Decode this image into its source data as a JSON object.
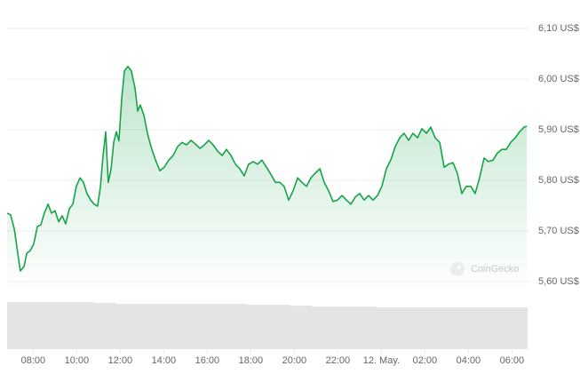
{
  "chart_data": {
    "type": "line",
    "watermark": "CoinGecko",
    "series": [
      {
        "color": "#16a34a",
        "x": [
          6.8,
          6.96,
          7.13,
          7.29,
          7.41,
          7.58,
          7.7,
          7.86,
          8.02,
          8.19,
          8.35,
          8.51,
          8.68,
          8.84,
          9.0,
          9.17,
          9.33,
          9.49,
          9.66,
          9.82,
          9.98,
          10.15,
          10.31,
          10.47,
          10.64,
          10.8,
          10.96,
          11.09,
          11.21,
          11.33,
          11.45,
          11.58,
          11.7,
          11.82,
          11.94,
          12.07,
          12.19,
          12.35,
          12.51,
          12.68,
          12.8,
          12.92,
          13.09,
          13.25,
          13.41,
          13.62,
          13.82,
          14.02,
          14.23,
          14.43,
          14.64,
          14.84,
          15.04,
          15.25,
          15.45,
          15.66,
          15.86,
          16.07,
          16.27,
          16.47,
          16.68,
          16.88,
          17.09,
          17.29,
          17.49,
          17.7,
          17.9,
          18.11,
          18.31,
          18.51,
          18.72,
          18.92,
          19.13,
          19.33,
          19.53,
          19.74,
          19.94,
          20.15,
          20.35,
          20.56,
          20.76,
          20.96,
          21.17,
          21.37,
          21.58,
          21.78,
          21.98,
          22.19,
          22.39,
          22.6,
          22.8,
          23.0,
          23.21,
          23.41,
          23.62,
          23.82,
          24.02,
          24.23,
          24.43,
          24.64,
          24.84,
          25.04,
          25.25,
          25.45,
          25.66,
          25.86,
          26.07,
          26.27,
          26.47,
          26.68,
          26.88,
          27.09,
          27.29,
          27.49,
          27.7,
          27.9,
          28.11,
          28.31,
          28.51,
          28.72,
          28.92,
          29.13,
          29.33,
          29.53,
          29.74,
          29.94,
          30.15,
          30.35,
          30.56,
          30.68
        ],
        "values": [
          5.735,
          5.732,
          5.704,
          5.656,
          5.621,
          5.63,
          5.656,
          5.661,
          5.674,
          5.709,
          5.712,
          5.735,
          5.753,
          5.735,
          5.74,
          5.718,
          5.73,
          5.714,
          5.744,
          5.753,
          5.788,
          5.805,
          5.796,
          5.774,
          5.761,
          5.753,
          5.749,
          5.788,
          5.849,
          5.896,
          5.796,
          5.823,
          5.875,
          5.896,
          5.878,
          5.963,
          6.016,
          6.025,
          6.016,
          5.981,
          5.937,
          5.949,
          5.928,
          5.893,
          5.867,
          5.84,
          5.819,
          5.826,
          5.84,
          5.849,
          5.867,
          5.875,
          5.87,
          5.879,
          5.872,
          5.863,
          5.87,
          5.879,
          5.87,
          5.858,
          5.849,
          5.861,
          5.849,
          5.832,
          5.823,
          5.809,
          5.832,
          5.837,
          5.832,
          5.84,
          5.826,
          5.812,
          5.796,
          5.796,
          5.788,
          5.761,
          5.779,
          5.805,
          5.796,
          5.788,
          5.805,
          5.814,
          5.823,
          5.796,
          5.779,
          5.758,
          5.761,
          5.77,
          5.761,
          5.753,
          5.767,
          5.774,
          5.761,
          5.77,
          5.761,
          5.77,
          5.788,
          5.823,
          5.84,
          5.867,
          5.884,
          5.893,
          5.879,
          5.893,
          5.884,
          5.902,
          5.893,
          5.905,
          5.884,
          5.875,
          5.826,
          5.832,
          5.835,
          5.814,
          5.774,
          5.788,
          5.788,
          5.774,
          5.805,
          5.844,
          5.837,
          5.84,
          5.854,
          5.861,
          5.861,
          5.875,
          5.884,
          5.896,
          5.905,
          5.907
        ]
      }
    ],
    "volume": {
      "color": "#e4e4e4",
      "x": [
        6.8,
        7.8,
        8.8,
        9.8,
        10.8,
        11.8,
        12.8,
        13.8,
        14.8,
        15.8,
        16.8,
        17.8,
        18.8,
        19.8,
        20.8,
        21.8,
        22.8,
        23.8,
        24.8,
        25.8,
        26.8,
        27.8,
        28.8,
        29.8
      ],
      "values": [
        52,
        52,
        52,
        52,
        51,
        50,
        50,
        50,
        50,
        50,
        50,
        49,
        49,
        48,
        47,
        47,
        47,
        46,
        46,
        46,
        46,
        46,
        46,
        46
      ]
    },
    "xlim": [
      6.8,
      30.8
    ],
    "xticks": [
      {
        "value": 8,
        "label": "08:00"
      },
      {
        "value": 10,
        "label": "10:00"
      },
      {
        "value": 12,
        "label": "12:00"
      },
      {
        "value": 14,
        "label": "14:00"
      },
      {
        "value": 16,
        "label": "16:00"
      },
      {
        "value": 18,
        "label": "18:00"
      },
      {
        "value": 20,
        "label": "20:00"
      },
      {
        "value": 22,
        "label": "22:00"
      },
      {
        "value": 24,
        "label": "12. May."
      },
      {
        "value": 26,
        "label": "02:00"
      },
      {
        "value": 28,
        "label": "04:00"
      },
      {
        "value": 30,
        "label": "06:00"
      }
    ],
    "ylim": [
      5.58,
      6.12
    ],
    "yticks": [
      {
        "value": 5.6,
        "label": "5,60 US$"
      },
      {
        "value": 5.7,
        "label": "5,70 US$"
      },
      {
        "value": 5.8,
        "label": "5,80 US$"
      },
      {
        "value": 5.9,
        "label": "5,90 US$"
      },
      {
        "value": 6.0,
        "label": "6,00 US$"
      },
      {
        "value": 6.1,
        "label": "6,10 US$"
      }
    ],
    "grid": true
  }
}
